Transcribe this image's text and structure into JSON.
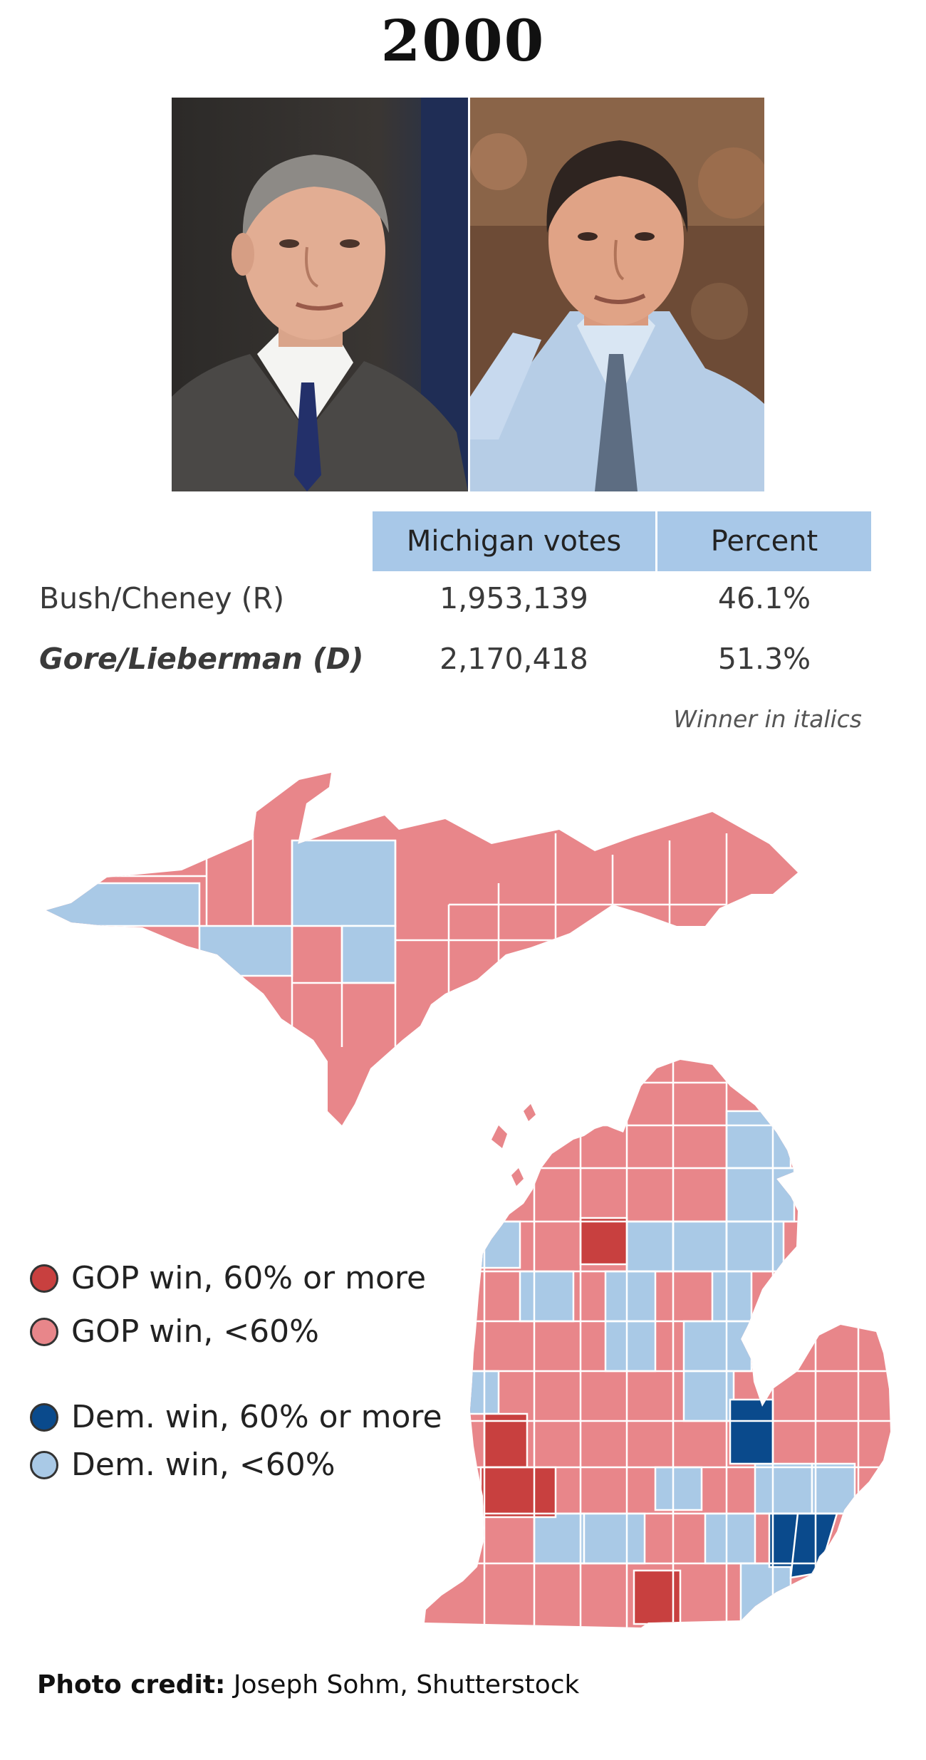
{
  "year": "2000",
  "photos": [
    {
      "icon": "bush-portrait-photo"
    },
    {
      "icon": "gore-portrait-photo"
    }
  ],
  "table": {
    "headers": {
      "votes": "Michigan votes",
      "percent": "Percent"
    },
    "rows": [
      {
        "name": "Bush/Cheney (R)",
        "votes": "1,953,139",
        "percent": "46.1%",
        "winner": false
      },
      {
        "name": "Gore/Lieberman (D)",
        "votes": "2,170,418",
        "percent": "51.3%",
        "winner": true
      }
    ],
    "note": "Winner in italics"
  },
  "colors": {
    "gop_strong": "#c8403f",
    "gop": "#e8868a",
    "dem_strong": "#0a4a8c",
    "dem": "#a9c9e6",
    "table_header": "#a8c8e8"
  },
  "legend": [
    {
      "label": "GOP win, 60% or more",
      "color": "#c8403f"
    },
    {
      "label": "GOP win, <60%",
      "color": "#e8868a"
    },
    {
      "label": "Dem. win, 60% or more",
      "color": "#0a4a8c"
    },
    {
      "label": "Dem. win, <60%",
      "color": "#a9c9e6"
    }
  ],
  "credit": {
    "label": "Photo credit:",
    "text": " Joseph Sohm, Shutterstock"
  }
}
